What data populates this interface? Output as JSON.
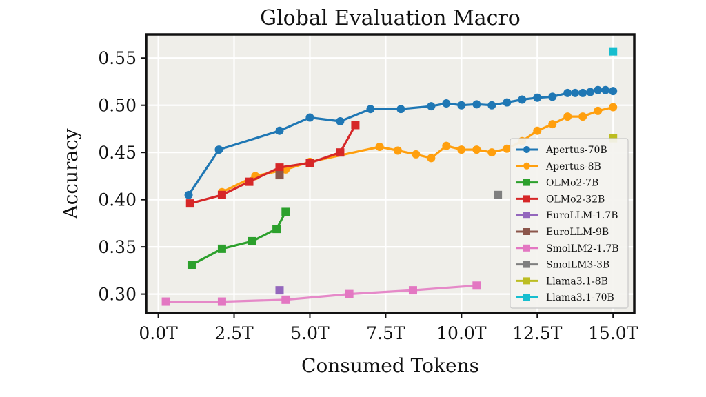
{
  "chart_data": {
    "type": "line",
    "title": "Global Evaluation Macro",
    "xlabel": "Consumed Tokens",
    "ylabel": "Accuracy",
    "xlim": [
      -0.4,
      15.7
    ],
    "ylim": [
      0.28,
      0.575
    ],
    "xticks": [
      0,
      2.5,
      5,
      7.5,
      10,
      12.5,
      15
    ],
    "xtick_labels": [
      "0.0T",
      "2.5T",
      "5.0T",
      "7.5T",
      "10.0T",
      "12.5T",
      "15.0T"
    ],
    "yticks": [
      0.3,
      0.35,
      0.4,
      0.45,
      0.5,
      0.55
    ],
    "ytick_labels": [
      "0.30",
      "0.35",
      "0.40",
      "0.45",
      "0.50",
      "0.55"
    ],
    "grid": true,
    "legend_position": "lower-right",
    "series": [
      {
        "name": "Apertus-70B",
        "color": "#1f77b4",
        "marker": "circle",
        "x": [
          1,
          2,
          4,
          5,
          6,
          7,
          8,
          9,
          9.5,
          10,
          10.5,
          11,
          11.5,
          12,
          12.5,
          13,
          13.5,
          13.75,
          14,
          14.25,
          14.5,
          14.75,
          15
        ],
        "y": [
          0.405,
          0.453,
          0.473,
          0.487,
          0.483,
          0.496,
          0.496,
          0.499,
          0.502,
          0.5,
          0.501,
          0.5,
          0.503,
          0.506,
          0.508,
          0.509,
          0.513,
          0.513,
          0.513,
          0.514,
          0.516,
          0.516,
          0.515
        ]
      },
      {
        "name": "Apertus-8B",
        "color": "#ff9f0e",
        "marker": "circle",
        "x": [
          2.1,
          3.2,
          4.2,
          5,
          7.3,
          7.9,
          8.5,
          9,
          9.5,
          10,
          10.5,
          11,
          11.5,
          12,
          12.5,
          13,
          13.5,
          14,
          14.5,
          15
        ],
        "y": [
          0.408,
          0.425,
          0.432,
          0.44,
          0.456,
          0.452,
          0.448,
          0.444,
          0.457,
          0.453,
          0.453,
          0.45,
          0.454,
          0.462,
          0.473,
          0.48,
          0.488,
          0.488,
          0.494,
          0.498
        ]
      },
      {
        "name": "OLMo2-7B",
        "color": "#2ca02c",
        "marker": "square",
        "x": [
          1.1,
          2.1,
          3.1,
          3.9,
          4.2
        ],
        "y": [
          0.331,
          0.348,
          0.356,
          0.369,
          0.387
        ]
      },
      {
        "name": "OLMo2-32B",
        "color": "#d62728",
        "marker": "square",
        "x": [
          1.05,
          2.1,
          3.0,
          4.0,
          5.0,
          6.0,
          6.5
        ],
        "y": [
          0.396,
          0.405,
          0.419,
          0.434,
          0.439,
          0.45,
          0.479
        ]
      },
      {
        "name": "EuroLLM-1.7B",
        "color": "#9467bd",
        "marker": "square",
        "x": [
          4.0
        ],
        "y": [
          0.304
        ]
      },
      {
        "name": "EuroLLM-9B",
        "color": "#8c564b",
        "marker": "square",
        "x": [
          4.0
        ],
        "y": [
          0.426
        ]
      },
      {
        "name": "SmolLM2-1.7B",
        "color": "#e377c2",
        "marker": "square",
        "x": [
          0.25,
          2.1,
          4.2,
          6.3,
          8.4,
          10.5
        ],
        "y": [
          0.292,
          0.292,
          0.294,
          0.3,
          0.304,
          0.309
        ]
      },
      {
        "name": "SmolLM3-3B",
        "color": "#7f7f7f",
        "marker": "square",
        "x": [
          11.2
        ],
        "y": [
          0.405
        ]
      },
      {
        "name": "Llama3.1-8B",
        "color": "#bcbd22",
        "marker": "square",
        "x": [
          15.0
        ],
        "y": [
          0.465
        ]
      },
      {
        "name": "Llama3.1-70B",
        "color": "#17becf",
        "marker": "square",
        "x": [
          15.0
        ],
        "y": [
          0.557
        ]
      }
    ]
  }
}
